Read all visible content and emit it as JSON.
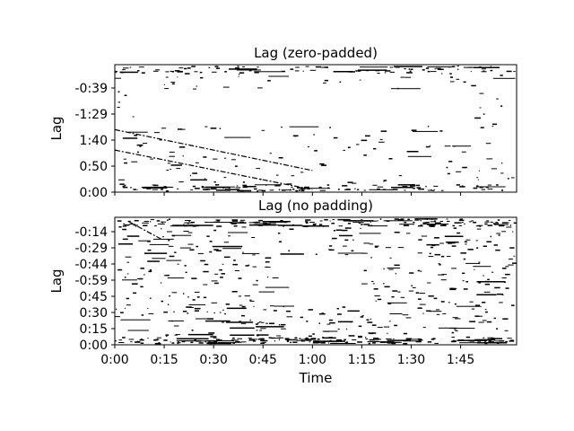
{
  "chart_data": [
    {
      "type": "heatmap",
      "title": "Lag (zero-padded)",
      "ylabel": "Lag",
      "xlabel": "",
      "y_tick_labels": [
        "0:00",
        "0:50",
        "1:40",
        "-1:29",
        "-0:39"
      ],
      "x_tick_labels": [],
      "x_range": [
        0,
        122
      ],
      "grid": false,
      "colormap": "binary (black = recurrence, white = none)",
      "diagonal_bands": [
        {
          "from": {
            "time": 0,
            "lag": 0.49
          },
          "to": {
            "time": 60,
            "lag": 0.17
          }
        },
        {
          "from": {
            "time": 0,
            "lag": 0.33
          },
          "to": {
            "time": 60,
            "lag": 0.02
          }
        }
      ]
    },
    {
      "type": "heatmap",
      "title": "Lag (no padding)",
      "ylabel": "Lag",
      "xlabel": "Time",
      "y_tick_labels": [
        "0:00",
        "0:15",
        "0:30",
        "0:45",
        "-0:59",
        "-0:44",
        "-0:29",
        "-0:14"
      ],
      "x_tick_labels": [
        "0:00",
        "0:15",
        "0:30",
        "0:45",
        "1:00",
        "1:15",
        "1:30",
        "1:45"
      ],
      "x_range": [
        0,
        122
      ],
      "grid": false,
      "colormap": "binary (black = recurrence, white = none)",
      "diagonal_bands": [
        {
          "from": {
            "time": 4,
            "lag": 0.97
          },
          "to": {
            "time": 14,
            "lag": 0.83
          }
        }
      ]
    }
  ],
  "colors": {
    "foreground": "#000000",
    "background": "#ffffff"
  }
}
